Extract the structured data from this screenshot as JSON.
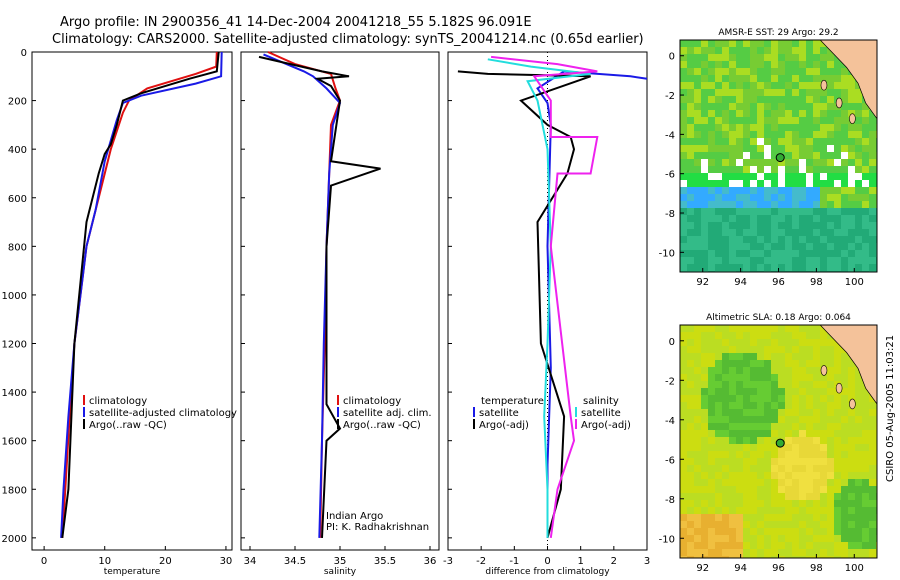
{
  "title_line1": "Argo profile: IN 2900356_41 14-Dec-2004 20041218_55 5.182S 96.091E",
  "title_line2": "Climatology: CARS2000. Satellite-adjusted climatology: synTS_20041214.nc (0.65d earlier)",
  "credit": "CSIRO 05-Aug-2005 11:03:21",
  "colors": {
    "clim": "#e01010",
    "sat": "#1a1ae6",
    "argo": "#000000",
    "salt": "#ee22ee",
    "sat_s": "#22dddd"
  },
  "chart_data": [
    {
      "type": "line",
      "id": "temp",
      "xlabel": "temperature",
      "ylim": [
        0,
        2050
      ],
      "xlim": [
        -2,
        31
      ],
      "xticks": [
        0,
        10,
        20,
        30
      ],
      "yticks": [
        0,
        200,
        400,
        600,
        800,
        1000,
        1200,
        1400,
        1600,
        1800,
        2000
      ],
      "legend": [
        "climatology",
        "satellite-adjusted climatology",
        "Argo(..raw -QC)"
      ],
      "series": [
        {
          "name": "climatology",
          "color_key": "clim",
          "x": [
            28.5,
            28.4,
            25,
            17,
            14,
            13,
            11,
            9,
            7,
            6,
            5,
            4.2,
            3.5,
            3
          ],
          "y": [
            0,
            60,
            90,
            150,
            200,
            250,
            400,
            600,
            800,
            1000,
            1200,
            1500,
            1800,
            2000
          ]
        },
        {
          "name": "satellite",
          "color_key": "sat",
          "x": [
            29.3,
            29.2,
            25,
            16,
            13,
            12,
            10,
            8.5,
            7,
            6,
            5,
            4,
            3.2,
            2.8
          ],
          "y": [
            0,
            100,
            130,
            180,
            210,
            280,
            450,
            650,
            800,
            1000,
            1200,
            1500,
            1800,
            2000
          ]
        },
        {
          "name": "argo",
          "color_key": "argo",
          "x": [
            28.8,
            28.5,
            24,
            16,
            13,
            12,
            11,
            10,
            9,
            7,
            5,
            4.5,
            4,
            3
          ],
          "y": [
            0,
            80,
            110,
            170,
            200,
            300,
            380,
            420,
            500,
            700,
            1200,
            1500,
            1800,
            2000
          ]
        }
      ]
    },
    {
      "type": "line",
      "id": "salt",
      "xlabel": "salinity",
      "ylim": [
        0,
        2050
      ],
      "xlim": [
        33.9,
        36.1
      ],
      "xticks": [
        34,
        34.5,
        35,
        35.5,
        36
      ],
      "legend": [
        "climatology",
        "satellite adj. clim.",
        "Argo(..raw -QC)"
      ],
      "note": [
        "Indian Argo",
        "PI: K. Radhakrishnan"
      ],
      "series": [
        {
          "name": "climatology",
          "color_key": "clim",
          "x": [
            34.2,
            34.5,
            34.9,
            34.95,
            35,
            34.9,
            34.88,
            34.85,
            34.83,
            34.8,
            34.78
          ],
          "y": [
            0,
            50,
            90,
            150,
            200,
            300,
            500,
            800,
            1200,
            1600,
            2000
          ]
        },
        {
          "name": "satellite",
          "color_key": "sat",
          "x": [
            34.15,
            34.6,
            34.7,
            34.85,
            35,
            34.92,
            34.88,
            34.85,
            34.82,
            34.8,
            34.77
          ],
          "y": [
            10,
            80,
            100,
            150,
            210,
            300,
            500,
            800,
            1200,
            1600,
            2000
          ]
        },
        {
          "name": "argo",
          "color_key": "argo",
          "x": [
            34.1,
            34.8,
            35.1,
            34.75,
            34.9,
            35,
            34.9,
            35.45,
            34.9,
            34.85,
            34.85,
            35.0,
            34.85,
            34.8
          ],
          "y": [
            20,
            80,
            100,
            110,
            140,
            200,
            450,
            480,
            550,
            800,
            1450,
            1550,
            1600,
            2000
          ]
        }
      ]
    },
    {
      "type": "line",
      "id": "diff",
      "xlabel": "difference from climatology",
      "ylim": [
        0,
        2050
      ],
      "xlim": [
        -3,
        3
      ],
      "xticks": [
        -3,
        -2,
        -1,
        0,
        1,
        2,
        3
      ],
      "legend_left_title": "temperature",
      "legend_left": [
        "satellite",
        "Argo(-adj)"
      ],
      "legend_right_title": "salinity",
      "legend_right": [
        "satellite",
        "Argo(-adj)"
      ],
      "series": [
        {
          "name": "temp satellite",
          "color_key": "sat",
          "x": [
            3,
            2.5,
            0.5,
            -0.3,
            0,
            0.1,
            0,
            0.1,
            0,
            0
          ],
          "y": [
            110,
            100,
            80,
            150,
            210,
            300,
            800,
            1300,
            1700,
            2000
          ]
        },
        {
          "name": "temp argo",
          "color_key": "argo",
          "x": [
            -2.7,
            -1.8,
            1.3,
            -0.8,
            0,
            0.7,
            0.8,
            0.6,
            -0.3,
            -0.2,
            0.5,
            0.4,
            0.2,
            0
          ],
          "y": [
            80,
            90,
            100,
            200,
            300,
            350,
            400,
            500,
            700,
            1200,
            1500,
            1800,
            1900,
            2000
          ]
        },
        {
          "name": "salt satellite",
          "color_key": "sat_s",
          "x": [
            -1.8,
            -0.5,
            1.3,
            -0.6,
            -0.3,
            0,
            0.1,
            0,
            -0.1,
            0,
            0
          ],
          "y": [
            30,
            60,
            90,
            120,
            200,
            400,
            800,
            1200,
            1500,
            1800,
            2000
          ]
        },
        {
          "name": "salt argo",
          "color_key": "salt",
          "x": [
            -1.7,
            0.3,
            1.5,
            -0.4,
            0.1,
            0.1,
            1.5,
            1.3,
            0.3,
            0.1,
            0.7,
            0.8,
            0.3,
            0.1
          ],
          "y": [
            20,
            50,
            80,
            100,
            200,
            350,
            350,
            500,
            500,
            800,
            1500,
            1600,
            1800,
            2000
          ]
        }
      ]
    },
    {
      "type": "heatmap",
      "id": "sst",
      "title": "AMSR-E SST: 29 Argo: 29.2",
      "xticks": [
        92,
        94,
        96,
        98,
        100
      ],
      "yticks": [
        0,
        -2,
        -4,
        -6,
        -8,
        -10
      ],
      "xlim": [
        90.8,
        101.2
      ],
      "ylim": [
        -11,
        0.8
      ],
      "point": [
        96.091,
        -5.182
      ]
    },
    {
      "type": "heatmap",
      "id": "sla",
      "title": "Altimetric SLA: 0.18 Argo: 0.064",
      "xticks": [
        92,
        94,
        96,
        98,
        100
      ],
      "yticks": [
        0,
        -2,
        -4,
        -6,
        -8,
        -10
      ],
      "xlim": [
        90.8,
        101.2
      ],
      "ylim": [
        -11,
        0.8
      ],
      "point": [
        96.091,
        -5.182
      ]
    }
  ]
}
